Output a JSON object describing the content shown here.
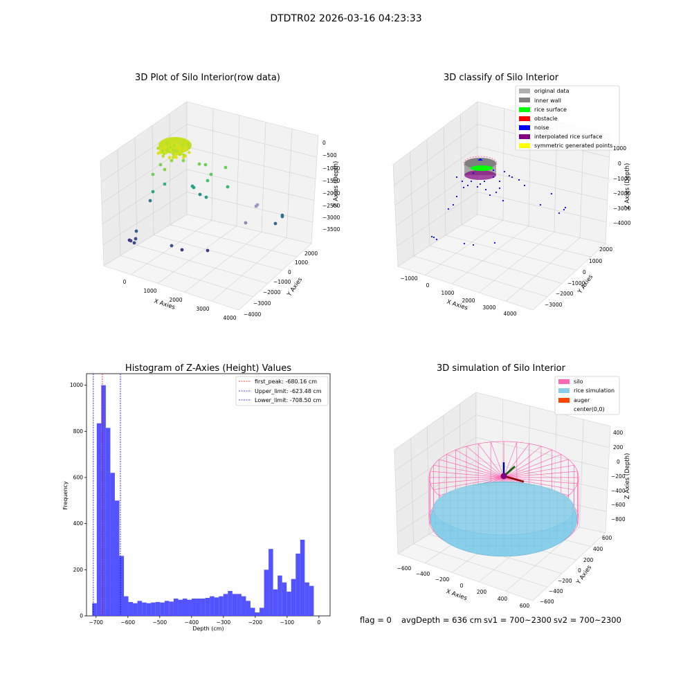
{
  "suptitle": "DTDTR02 2026-03-16 04:23:33",
  "colors": {
    "hist": "#4444ff",
    "peak_line": "#ff0000",
    "limit_line": "#0000cc",
    "silo": "#ff69b4",
    "rice_simulation": "#87ceeb",
    "auger": "#ff4500",
    "original_data": "#b0b0b0",
    "inner_wall": "#808080",
    "rice_surface": "#00ff00",
    "obstacle": "#ff0000",
    "noise": "#0000ff",
    "interpolated_rice_surface": "#800080",
    "symmetric_generated_points": "#ffff00"
  },
  "chart_data": [
    {
      "type": "scatter",
      "title": "3D Plot of Silo Interior(row data)",
      "xlabel": "X Axies",
      "ylabel": "Y Axies",
      "zlabel": "Z Axies (Depth)",
      "x_ticks": [
        "0",
        "1000",
        "2000",
        "3000",
        "4000"
      ],
      "y_ticks": [
        "2000",
        "1000",
        "0",
        "−1000",
        "−2000",
        "−3000",
        "−4000"
      ],
      "z_ticks": [
        "0",
        "−500",
        "−1000",
        "−1500",
        "−2000",
        "−2500",
        "−3000",
        "−3500"
      ],
      "grid": true,
      "colormap": "viridis"
    },
    {
      "type": "scatter",
      "title": "3D classify of Silo Interior",
      "xlabel": "X Axies",
      "ylabel": "Y Axies",
      "zlabel": "Z Axies (Depth)",
      "x_ticks": [
        "−1000",
        "0",
        "1000",
        "2000",
        "3000",
        "4000"
      ],
      "y_ticks": [
        "2000",
        "1000",
        "0",
        "−1000",
        "−2000",
        "−3000"
      ],
      "z_ticks": [
        "1000",
        "0",
        "−1000",
        "−2000",
        "−3000",
        "−4000"
      ],
      "grid": true,
      "legend_position": "top-right",
      "legend": [
        {
          "label": "original data",
          "color_key": "original_data"
        },
        {
          "label": "inner wall",
          "color_key": "inner_wall"
        },
        {
          "label": "rice surface",
          "color_key": "rice_surface"
        },
        {
          "label": "obstacle",
          "color_key": "obstacle"
        },
        {
          "label": "noise",
          "color_key": "noise"
        },
        {
          "label": "interpolated rice surface",
          "color_key": "interpolated_rice_surface"
        },
        {
          "label": "symmetric generated points",
          "color_key": "symmetric_generated_points"
        }
      ]
    },
    {
      "type": "bar",
      "title": "Histogram of Z-Axies (Height) Values",
      "xlabel": "Depth (cm)",
      "ylabel": "Frequency",
      "xlim": [
        -730,
        35
      ],
      "ylim": [
        0,
        1050
      ],
      "x_ticks": [
        -700,
        -600,
        -500,
        -400,
        -300,
        -200,
        -100,
        0
      ],
      "y_ticks": [
        0,
        200,
        400,
        600,
        800,
        1000
      ],
      "bin_start": -712,
      "bin_width": 14.2,
      "values": [
        55,
        835,
        1000,
        815,
        620,
        500,
        260,
        85,
        60,
        55,
        65,
        58,
        55,
        58,
        60,
        58,
        65,
        62,
        75,
        70,
        75,
        70,
        75,
        75,
        75,
        78,
        85,
        80,
        85,
        95,
        108,
        95,
        95,
        85,
        65,
        35,
        15,
        35,
        200,
        290,
        115,
        175,
        145,
        105,
        160,
        270,
        330,
        145,
        130
      ],
      "vlines": [
        {
          "label": "first_peak: -680.16 cm",
          "x": -680.16,
          "color_key": "peak_line"
        },
        {
          "label": "Upper_limit: -623.48 cm",
          "x": -623.48,
          "color_key": "limit_line"
        },
        {
          "label": "Lower_limit: -708.50 cm",
          "x": -708.5,
          "color_key": "limit_line"
        }
      ],
      "legend_position": "top-right"
    },
    {
      "type": "surface",
      "title": "3D simulation of Silo Interior",
      "xlabel": "X Axies",
      "ylabel": "Y Axies",
      "zlabel": "Z Axies (Depth)",
      "x_ticks": [
        "−600",
        "−400",
        "−200",
        "0",
        "200",
        "400",
        "600"
      ],
      "y_ticks": [
        "600",
        "400",
        "200",
        "0",
        "−200",
        "−400",
        "−600"
      ],
      "z_ticks": [
        "400",
        "200",
        "0",
        "−200",
        "−400",
        "−600",
        "−800"
      ],
      "grid": true,
      "legend_position": "top-right",
      "legend": [
        {
          "label": "silo",
          "color_key": "silo"
        },
        {
          "label": "rice simulation",
          "color_key": "rice_simulation"
        },
        {
          "label": "auger",
          "color_key": "auger"
        },
        {
          "label": "center(0,0)",
          "color_key": ""
        }
      ]
    }
  ],
  "footer": {
    "flag": "flag = 0",
    "avg_depth": "avgDepth = 636 cm",
    "sv1": "sv1 = 700~2300",
    "sv2": "sv2 = 700~2300"
  }
}
